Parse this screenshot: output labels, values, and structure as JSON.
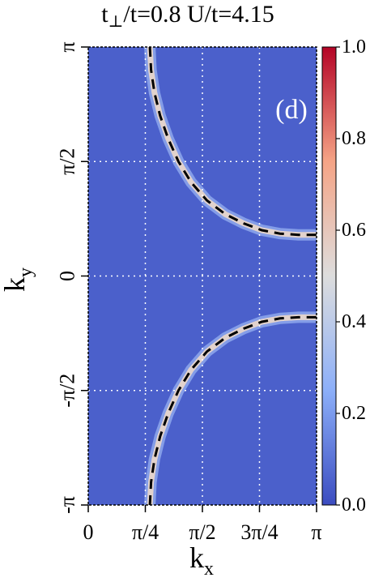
{
  "chart_data": {
    "type": "heatmap",
    "title": "t⊥/t=0.8  U/t=4.15",
    "title_parts": {
      "t": "t",
      "perp": "⊥",
      "rest": "/t=0.8  U/t=4.15"
    },
    "panel_label": "(d)",
    "xlabel": "k",
    "xlabel_sub": "x",
    "ylabel": "k",
    "ylabel_sub": "y",
    "x_range_over_pi": [
      0,
      1
    ],
    "y_range_over_pi": [
      -1,
      1
    ],
    "x_ticks": [
      {
        "value_over_pi": 0,
        "label": "0"
      },
      {
        "value_over_pi": 0.25,
        "label": "π/4"
      },
      {
        "value_over_pi": 0.5,
        "label": "π/2"
      },
      {
        "value_over_pi": 0.75,
        "label": "3π/4"
      },
      {
        "value_over_pi": 1,
        "label": "π"
      }
    ],
    "y_ticks": [
      {
        "value_over_pi": -1,
        "label": "-π"
      },
      {
        "value_over_pi": -0.5,
        "label": "-π/2"
      },
      {
        "value_over_pi": 0,
        "label": "0"
      },
      {
        "value_over_pi": 0.5,
        "label": "π/2"
      },
      {
        "value_over_pi": 1,
        "label": "π"
      }
    ],
    "colorbar": {
      "range": [
        0.0,
        1.0
      ],
      "ticks": [
        {
          "value": 0.0,
          "label": "0.0"
        },
        {
          "value": 0.2,
          "label": "0.2"
        },
        {
          "value": 0.4,
          "label": "0.4"
        },
        {
          "value": 0.6,
          "label": "0.6"
        },
        {
          "value": 0.8,
          "label": "0.8"
        },
        {
          "value": 1.0,
          "label": "1.0"
        }
      ],
      "colormap": "coolwarm",
      "stops": [
        "#3b4cc0",
        "#8caff9",
        "#dddddd",
        "#f5a486",
        "#b40426"
      ]
    },
    "background_value": 0.05,
    "band_peak_value": 0.55,
    "grid_lines_over_pi": {
      "x": [
        0.25,
        0.5,
        0.75
      ],
      "y": [
        -0.5,
        0.5
      ]
    },
    "fermi_surface": {
      "center_over_pi": [
        1,
        1
      ],
      "points_over_pi": [
        [
          0.27,
          1.0
        ],
        [
          0.275,
          0.9
        ],
        [
          0.29,
          0.8
        ],
        [
          0.315,
          0.7
        ],
        [
          0.35,
          0.6
        ],
        [
          0.395,
          0.5
        ],
        [
          0.45,
          0.41
        ],
        [
          0.52,
          0.33
        ],
        [
          0.6,
          0.27
        ],
        [
          0.68,
          0.23
        ],
        [
          0.76,
          0.2
        ],
        [
          0.84,
          0.185
        ],
        [
          0.92,
          0.18
        ],
        [
          1.0,
          0.18
        ]
      ],
      "mirrored_in_ky": true,
      "style": "dashed",
      "color": "#000000"
    }
  }
}
